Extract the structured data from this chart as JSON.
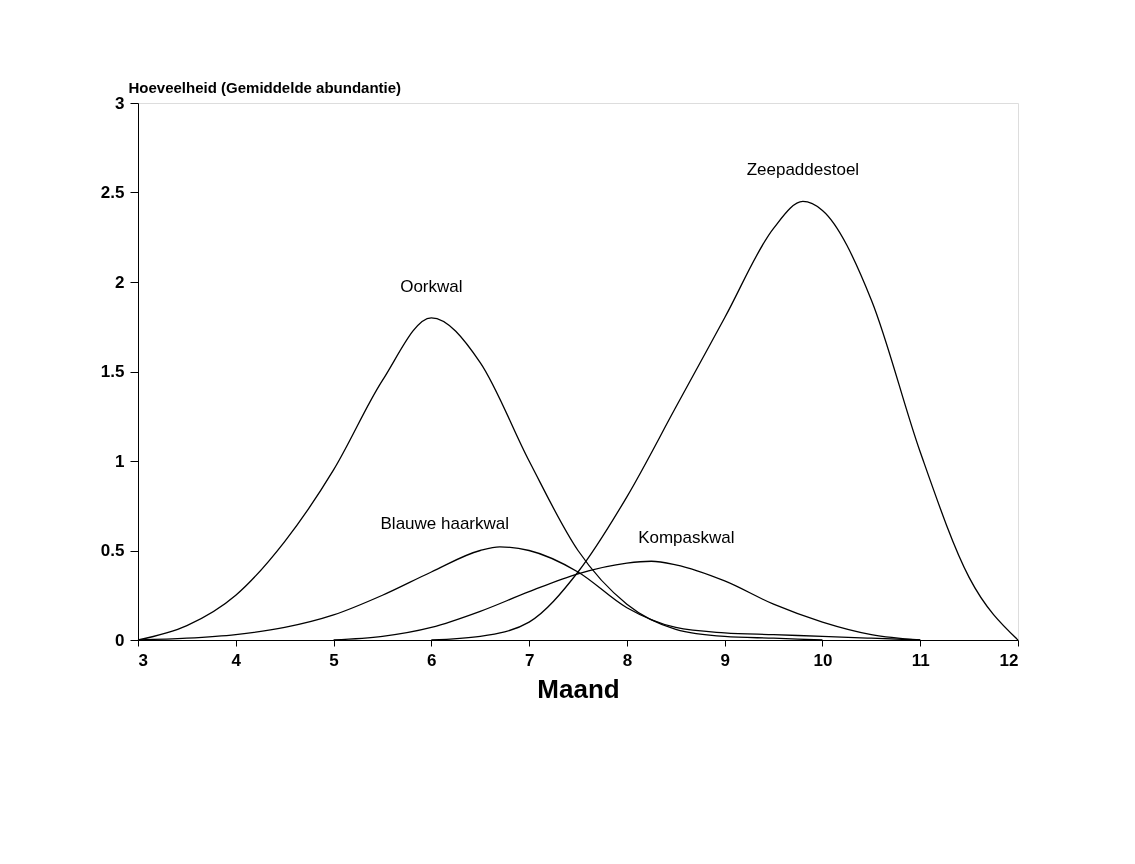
{
  "chart_data": {
    "type": "line",
    "xlabel": "Maand",
    "ylabel": "Hoeveelheid (Gemiddelde abundantie)",
    "xlim": [
      3,
      12
    ],
    "xticks": [
      3,
      4,
      5,
      6,
      7,
      8,
      9,
      10,
      11,
      12
    ],
    "ylim": [
      0,
      3
    ],
    "yticks": [
      0,
      0.5,
      1,
      1.5,
      2,
      2.5,
      3
    ],
    "grid": false,
    "marker": "none",
    "line_style": "solid",
    "series": [
      {
        "name": "Oorkwal",
        "color": "#000000",
        "x": [
          3,
          3.5,
          4,
          4.5,
          5,
          5.5,
          6,
          6.5,
          7,
          7.5,
          8,
          8.5,
          9,
          9.5,
          10
        ],
        "values": [
          0,
          0.08,
          0.25,
          0.55,
          0.95,
          1.45,
          1.8,
          1.55,
          1.0,
          0.5,
          0.2,
          0.06,
          0.02,
          0.01,
          0
        ]
      },
      {
        "name": "Blauwe haarkwal",
        "color": "#000000",
        "x": [
          3,
          3.5,
          4,
          4.5,
          5,
          5.5,
          6,
          6.5,
          6.7,
          7,
          7.5,
          8,
          8.5,
          9,
          9.5,
          10,
          10.5,
          11
        ],
        "values": [
          0,
          0.01,
          0.03,
          0.07,
          0.14,
          0.25,
          0.38,
          0.5,
          0.52,
          0.5,
          0.38,
          0.18,
          0.07,
          0.04,
          0.03,
          0.02,
          0.01,
          0
        ]
      },
      {
        "name": "Kompaskwal",
        "color": "#000000",
        "x": [
          5,
          5.5,
          6,
          6.5,
          7,
          7.5,
          8,
          8.25,
          8.5,
          9,
          9.5,
          10,
          10.5,
          11
        ],
        "values": [
          0,
          0.02,
          0.07,
          0.16,
          0.27,
          0.37,
          0.43,
          0.44,
          0.42,
          0.33,
          0.2,
          0.1,
          0.03,
          0
        ]
      },
      {
        "name": "Zeepaddestoel",
        "color": "#000000",
        "x": [
          6,
          6.5,
          7,
          7.5,
          8,
          8.5,
          9,
          9.5,
          9.8,
          10,
          10.5,
          11,
          11.5,
          12
        ],
        "values": [
          0,
          0.02,
          0.1,
          0.38,
          0.8,
          1.3,
          1.8,
          2.3,
          2.45,
          2.4,
          1.9,
          1.05,
          0.35,
          0
        ]
      }
    ]
  }
}
